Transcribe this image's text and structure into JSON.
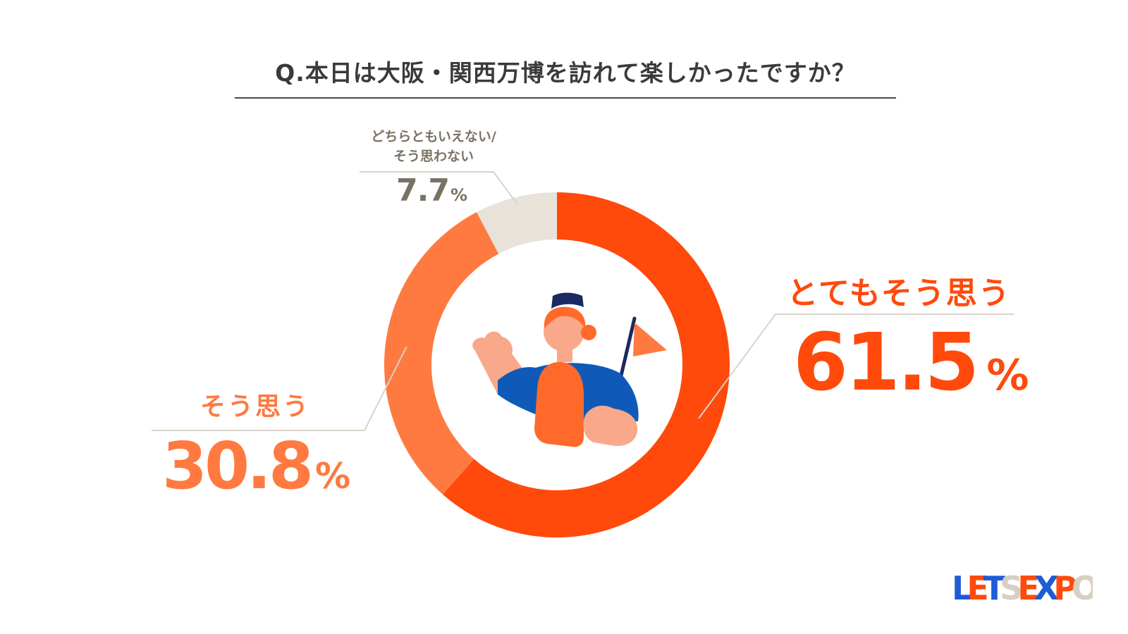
{
  "title": "Q.本日は大阪・関西万博を訪れて楽しかったですか？",
  "chart_data": {
    "type": "pie",
    "variant": "donut",
    "categories": [
      "とてもそう思う",
      "そう思う",
      "どちらともいえない/そう思わない"
    ],
    "category_label_lines": [
      [
        "とてもそう思う"
      ],
      [
        "そう思う"
      ],
      [
        "どちらともいえない/",
        "そう思わない"
      ]
    ],
    "values": [
      61.5,
      30.8,
      7.7
    ],
    "value_labels": [
      "61.5",
      "30.8",
      "7.7"
    ],
    "unit": "%",
    "colors": [
      "#ff4a0c",
      "#ff7a40",
      "#e8e2d8"
    ],
    "start": "top",
    "direction": "clockwise"
  },
  "illustration": "person-with-flag",
  "logo": {
    "text": "LETSEXPO",
    "colors": [
      "#1e5bd6",
      "#ff4a0c",
      "#d8cfc2"
    ]
  }
}
